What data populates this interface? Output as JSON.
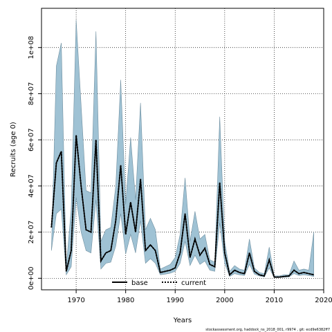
{
  "chart_data": {
    "type": "area",
    "xlabel": "Years",
    "ylabel": "Recruits (age 0)",
    "xlim": [
      1963,
      2020
    ],
    "ylim": [
      -5000000,
      117000000
    ],
    "x_ticks": [
      1970,
      1980,
      1990,
      2000,
      2010,
      2020
    ],
    "y_ticks": [
      0,
      20000000,
      40000000,
      60000000,
      80000000,
      100000000
    ],
    "y_tick_labels": [
      "0e+00",
      "2e+07",
      "4e+07",
      "6e+07",
      "8e+07",
      "1e+08"
    ],
    "grid": true,
    "legend_position": "bottom-center",
    "band_color": "#9fc2d4",
    "band_edge_color": "#6f8fa0",
    "x": [
      1965,
      1966,
      1967,
      1968,
      1969,
      1970,
      1971,
      1972,
      1973,
      1974,
      1975,
      1976,
      1977,
      1978,
      1979,
      1980,
      1981,
      1982,
      1983,
      1984,
      1985,
      1986,
      1987,
      1988,
      1989,
      1990,
      1991,
      1992,
      1993,
      1994,
      1995,
      1996,
      1997,
      1998,
      1999,
      2000,
      2001,
      2002,
      2003,
      2004,
      2005,
      2006,
      2007,
      2008,
      2009,
      2010,
      2011,
      2012,
      2013,
      2014,
      2015,
      2016,
      2017,
      2018
    ],
    "series": [
      {
        "name": "base",
        "style": "solid",
        "color": "#000000",
        "values": [
          22000000,
          50000000,
          55000000,
          3000000,
          12000000,
          62000000,
          40000000,
          21000000,
          20000000,
          60000000,
          7500000,
          11000000,
          12000000,
          25000000,
          49000000,
          19000000,
          33000000,
          20000000,
          43000000,
          12000000,
          14500000,
          12000000,
          2500000,
          3000000,
          3500000,
          4500000,
          11000000,
          28000000,
          9000000,
          17000000,
          10000000,
          13000000,
          6000000,
          5000000,
          41500000,
          11000000,
          1500000,
          3500000,
          2500000,
          2000000,
          11000000,
          3000000,
          1500000,
          1000000,
          8000000,
          500000,
          500000,
          800000,
          1000000,
          3500000,
          2000000,
          2500000,
          2000000,
          1500000
        ]
      },
      {
        "name": "current",
        "style": "dotted",
        "color": "#000000",
        "values": [
          22000000,
          50000000,
          55000000,
          3000000,
          12000000,
          62000000,
          40000000,
          21000000,
          20000000,
          60000000,
          7500000,
          11000000,
          12000000,
          25000000,
          49000000,
          19000000,
          33000000,
          20000000,
          43000000,
          12000000,
          14500000,
          12000000,
          2500000,
          3000000,
          3500000,
          4500000,
          11000000,
          28000000,
          9000000,
          17000000,
          10000000,
          13000000,
          6000000,
          5000000,
          41500000,
          11000000,
          1500000,
          3500000,
          2500000,
          2000000,
          11000000,
          3000000,
          1500000,
          1000000,
          8000000,
          500000,
          500000,
          800000,
          1000000,
          3500000,
          2000000,
          2500000,
          2000000,
          1500000
        ]
      }
    ],
    "band_upper": [
      12000000,
      92000000,
      102000000,
      5000000,
      30000000,
      112000000,
      75000000,
      38000000,
      37000000,
      107000000,
      16000000,
      21000000,
      22000000,
      40000000,
      86000000,
      32000000,
      61000000,
      34000000,
      76000000,
      21000000,
      26000000,
      21000000,
      4000000,
      5000000,
      6000000,
      9000000,
      19000000,
      43500000,
      16000000,
      29000000,
      17000000,
      19000000,
      8000000,
      7000000,
      70000000,
      16000000,
      3000000,
      5500000,
      4000000,
      3500000,
      17000000,
      4500000,
      2500000,
      2000000,
      13500000,
      1000000,
      1000000,
      1500000,
      1500000,
      7500000,
      3500000,
      4000000,
      3500000,
      20000000
    ],
    "band_lower": [
      12000000,
      28000000,
      30000000,
      1500000,
      5000000,
      35000000,
      20000000,
      12000000,
      11000000,
      34000000,
      4000000,
      6500000,
      7000000,
      14000000,
      28000000,
      10500000,
      19000000,
      11000000,
      25000000,
      6500000,
      8500000,
      6500000,
      1500000,
      1800000,
      2200000,
      3000000,
      6500000,
      16000000,
      5500000,
      10000000,
      6000000,
      7500000,
      3500000,
      3000000,
      24000000,
      6500000,
      800000,
      2000000,
      1500000,
      1200000,
      6000000,
      1800000,
      1000000,
      600000,
      4500000,
      300000,
      300000,
      500000,
      600000,
      2000000,
      1200000,
      1500000,
      1200000,
      800000
    ]
  },
  "footnote": "stockassessment.org, haddock_ns_2018_001, r9974 , git: ecd9e6382ff7"
}
